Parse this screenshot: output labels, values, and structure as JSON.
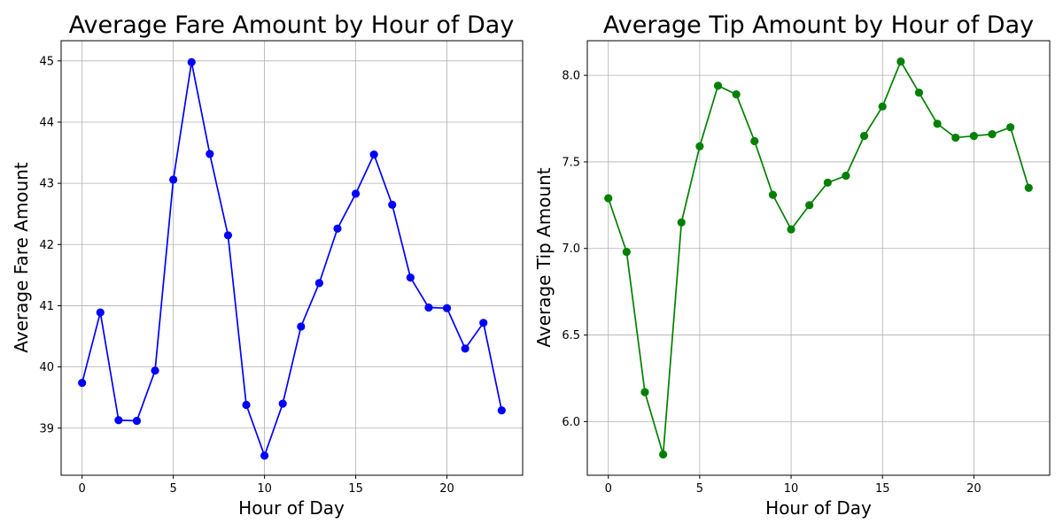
{
  "chart_data": [
    {
      "type": "line",
      "title": "Average Fare Amount by Hour of Day",
      "xlabel": "Hour of Day",
      "ylabel": "Average Fare Amount",
      "grid": true,
      "color": "#0000ff",
      "marker": "circle",
      "xlim": [
        -1.15,
        24.15
      ],
      "ylim": [
        38.23,
        45.33
      ],
      "xticks": [
        0,
        5,
        10,
        15,
        20
      ],
      "yticks": [
        39,
        40,
        41,
        42,
        43,
        44,
        45
      ],
      "x": [
        0,
        1,
        2,
        3,
        4,
        5,
        6,
        7,
        8,
        9,
        10,
        11,
        12,
        13,
        14,
        15,
        16,
        17,
        18,
        19,
        20,
        21,
        22,
        23
      ],
      "series": [
        {
          "values": [
            39.74,
            40.89,
            39.13,
            39.12,
            39.94,
            43.06,
            44.98,
            43.48,
            42.15,
            39.38,
            38.55,
            39.4,
            40.66,
            41.37,
            42.26,
            42.83,
            43.47,
            42.65,
            41.46,
            40.97,
            40.96,
            40.3,
            40.72,
            39.29
          ]
        }
      ]
    },
    {
      "type": "line",
      "title": "Average Tip Amount by Hour of Day",
      "xlabel": "Hour of Day",
      "ylabel": "Average Tip Amount",
      "grid": true,
      "color": "#008000",
      "marker": "circle",
      "xlim": [
        -1.15,
        24.15
      ],
      "ylim": [
        5.69,
        8.2
      ],
      "xticks": [
        0,
        5,
        10,
        15,
        20
      ],
      "yticks": [
        6.0,
        6.5,
        7.0,
        7.5,
        8.0
      ],
      "x": [
        0,
        1,
        2,
        3,
        4,
        5,
        6,
        7,
        8,
        9,
        10,
        11,
        12,
        13,
        14,
        15,
        16,
        17,
        18,
        19,
        20,
        21,
        22,
        23
      ],
      "series": [
        {
          "values": [
            7.29,
            6.98,
            6.17,
            5.81,
            7.15,
            7.59,
            7.94,
            7.89,
            7.62,
            7.31,
            7.11,
            7.25,
            7.38,
            7.42,
            7.65,
            7.82,
            8.08,
            7.9,
            7.72,
            7.64,
            7.65,
            7.66,
            7.7,
            7.35
          ]
        }
      ]
    }
  ]
}
